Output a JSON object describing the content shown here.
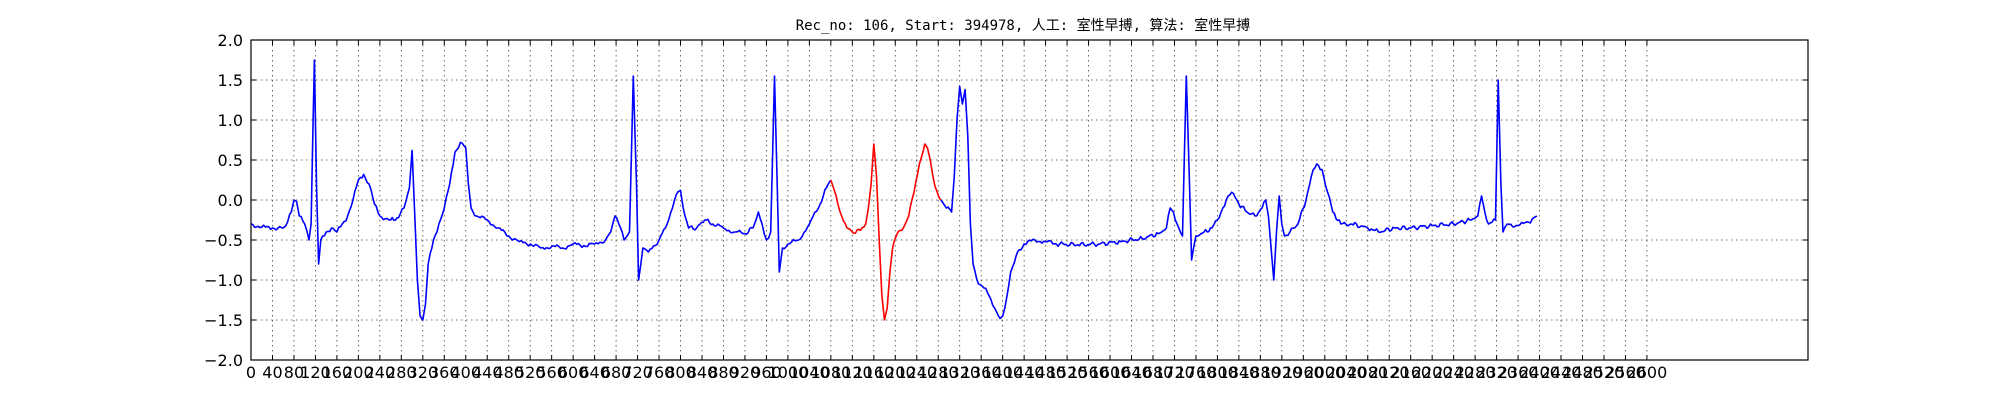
{
  "chart_data": {
    "type": "line",
    "title": "Rec_no: 106, Start: 394978, 人工: 室性早搏, 算法: 室性早搏",
    "xlabel": "",
    "ylabel": "",
    "xlim": [
      0,
      2900
    ],
    "ylim": [
      -2.0,
      2.0
    ],
    "grid": true,
    "yticks": [
      2.0,
      1.5,
      1.0,
      0.5,
      0.0,
      -0.5,
      -1.0,
      -1.5,
      -2.0
    ],
    "ytick_labels": [
      "2.0",
      "1.5",
      "1.0",
      "0.5",
      "0.0",
      "−0.5",
      "−1.0",
      "−1.5",
      "−2.0"
    ],
    "xticks": [
      0,
      40,
      80,
      120,
      160,
      200,
      240,
      280,
      320,
      360,
      400,
      440,
      480,
      520,
      560,
      600,
      640,
      680,
      720,
      760,
      800,
      840,
      880,
      920,
      960,
      1000,
      1040,
      1080,
      1120,
      1160,
      1200,
      1240,
      1280,
      1320,
      1360,
      1400,
      1440,
      1480,
      1520,
      1560,
      1600,
      1640,
      1680,
      1720,
      1760,
      1800,
      1840,
      1880,
      1920,
      1960,
      2000,
      2040,
      2080,
      2120,
      2160,
      2200,
      2240,
      2280,
      2320,
      2360,
      2400,
      2440,
      2480,
      2520,
      2560,
      2600
    ],
    "xtick_labels": [
      "0",
      "40",
      "80",
      "120",
      "160",
      "200",
      "240",
      "280",
      "320",
      "360",
      "400",
      "440",
      "480",
      "520",
      "560",
      "600",
      "640",
      "680",
      "720",
      "760",
      "800",
      "840",
      "880",
      "920",
      "960",
      "1000",
      "1040",
      "1080",
      "1120",
      "1160",
      "1200",
      "1240",
      "1280",
      "1320",
      "1360",
      "1400",
      "1440",
      "1480",
      "1520",
      "1560",
      "1600",
      "1640",
      "1680",
      "1720",
      "1760",
      "1800",
      "1840",
      "1880",
      "1920",
      "1960",
      "2000",
      "2040",
      "2080",
      "2120",
      "2160",
      "2200",
      "2240",
      "2280",
      "2320",
      "2360",
      "2400",
      "2440",
      "2480",
      "2520",
      "2560",
      "2600"
    ],
    "series": [
      {
        "color": "#0000ff",
        "points": [
          [
            0,
            -0.3
          ],
          [
            20,
            -0.34
          ],
          [
            40,
            -0.35
          ],
          [
            60,
            -0.35
          ],
          [
            65,
            -0.32
          ],
          [
            75,
            -0.15
          ],
          [
            80,
            0.0
          ],
          [
            85,
            -0.02
          ],
          [
            90,
            -0.2
          ],
          [
            100,
            -0.3
          ],
          [
            108,
            -0.5
          ],
          [
            112,
            -0.3
          ],
          [
            118,
            1.75
          ],
          [
            122,
            0.2
          ],
          [
            126,
            -0.8
          ],
          [
            130,
            -0.5
          ],
          [
            140,
            -0.4
          ],
          [
            150,
            -0.35
          ],
          [
            160,
            -0.4
          ],
          [
            170,
            -0.3
          ],
          [
            180,
            -0.2
          ],
          [
            190,
            0.0
          ],
          [
            200,
            0.25
          ],
          [
            210,
            0.32
          ],
          [
            220,
            0.2
          ],
          [
            230,
            -0.05
          ],
          [
            240,
            -0.2
          ],
          [
            260,
            -0.25
          ],
          [
            275,
            -0.22
          ],
          [
            285,
            -0.1
          ],
          [
            295,
            0.15
          ],
          [
            300,
            0.62
          ],
          [
            305,
            -0.2
          ],
          [
            310,
            -1.0
          ],
          [
            315,
            -1.45
          ],
          [
            320,
            -1.5
          ],
          [
            325,
            -1.3
          ],
          [
            330,
            -0.8
          ],
          [
            340,
            -0.5
          ],
          [
            350,
            -0.3
          ],
          [
            360,
            -0.1
          ],
          [
            370,
            0.2
          ],
          [
            380,
            0.6
          ],
          [
            390,
            0.72
          ],
          [
            400,
            0.65
          ],
          [
            405,
            0.2
          ],
          [
            410,
            -0.1
          ],
          [
            420,
            -0.2
          ],
          [
            440,
            -0.25
          ],
          [
            460,
            -0.35
          ],
          [
            480,
            -0.45
          ],
          [
            500,
            -0.52
          ],
          [
            520,
            -0.55
          ],
          [
            540,
            -0.6
          ],
          [
            560,
            -0.58
          ],
          [
            580,
            -0.6
          ],
          [
            600,
            -0.55
          ],
          [
            620,
            -0.57
          ],
          [
            640,
            -0.55
          ],
          [
            660,
            -0.5
          ],
          [
            670,
            -0.4
          ],
          [
            678,
            -0.2
          ],
          [
            685,
            -0.3
          ],
          [
            695,
            -0.5
          ],
          [
            705,
            -0.4
          ],
          [
            712,
            1.55
          ],
          [
            718,
            0.2
          ],
          [
            722,
            -1.0
          ],
          [
            730,
            -0.6
          ],
          [
            740,
            -0.65
          ],
          [
            760,
            -0.5
          ],
          [
            775,
            -0.3
          ],
          [
            785,
            -0.1
          ],
          [
            795,
            0.1
          ],
          [
            800,
            0.12
          ],
          [
            805,
            -0.1
          ],
          [
            815,
            -0.35
          ],
          [
            830,
            -0.35
          ],
          [
            845,
            -0.25
          ],
          [
            860,
            -0.3
          ],
          [
            880,
            -0.35
          ],
          [
            900,
            -0.4
          ],
          [
            920,
            -0.42
          ],
          [
            935,
            -0.35
          ],
          [
            945,
            -0.15
          ],
          [
            952,
            -0.3
          ],
          [
            960,
            -0.5
          ],
          [
            968,
            -0.4
          ],
          [
            975,
            1.55
          ],
          [
            980,
            0.2
          ],
          [
            984,
            -0.9
          ],
          [
            990,
            -0.6
          ],
          [
            1000,
            -0.55
          ],
          [
            1020,
            -0.5
          ],
          [
            1040,
            -0.3
          ],
          [
            1060,
            -0.05
          ],
          [
            1075,
            0.2
          ],
          [
            1080,
            0.25
          ]
        ]
      },
      {
        "color": "#ff0000",
        "points": [
          [
            1080,
            0.25
          ],
          [
            1090,
            0.05
          ],
          [
            1100,
            -0.2
          ],
          [
            1110,
            -0.35
          ],
          [
            1120,
            -0.4
          ],
          [
            1135,
            -0.38
          ],
          [
            1145,
            -0.3
          ],
          [
            1150,
            -0.1
          ],
          [
            1155,
            0.2
          ],
          [
            1160,
            0.7
          ],
          [
            1165,
            0.3
          ],
          [
            1170,
            -0.5
          ],
          [
            1175,
            -1.2
          ],
          [
            1180,
            -1.5
          ],
          [
            1185,
            -1.35
          ],
          [
            1190,
            -0.9
          ],
          [
            1195,
            -0.6
          ],
          [
            1205,
            -0.4
          ],
          [
            1215,
            -0.35
          ],
          [
            1225,
            -0.2
          ],
          [
            1235,
            0.1
          ],
          [
            1245,
            0.45
          ],
          [
            1255,
            0.7
          ],
          [
            1260,
            0.65
          ],
          [
            1265,
            0.5
          ],
          [
            1270,
            0.3
          ],
          [
            1278,
            0.1
          ],
          [
            1285,
            0.0
          ]
        ]
      },
      {
        "color": "#0000ff",
        "points": [
          [
            1285,
            0.0
          ],
          [
            1295,
            -0.1
          ],
          [
            1305,
            -0.15
          ],
          [
            1310,
            0.3
          ],
          [
            1315,
            1.0
          ],
          [
            1320,
            1.42
          ],
          [
            1325,
            1.2
          ],
          [
            1330,
            1.38
          ],
          [
            1335,
            0.8
          ],
          [
            1340,
            -0.3
          ],
          [
            1345,
            -0.8
          ],
          [
            1355,
            -1.05
          ],
          [
            1365,
            -1.1
          ],
          [
            1375,
            -1.2
          ],
          [
            1385,
            -1.35
          ],
          [
            1395,
            -1.48
          ],
          [
            1400,
            -1.45
          ],
          [
            1408,
            -1.2
          ],
          [
            1415,
            -0.9
          ],
          [
            1425,
            -0.7
          ],
          [
            1440,
            -0.55
          ],
          [
            1460,
            -0.5
          ],
          [
            1480,
            -0.52
          ],
          [
            1500,
            -0.55
          ],
          [
            1540,
            -0.56
          ],
          [
            1580,
            -0.55
          ],
          [
            1620,
            -0.52
          ],
          [
            1660,
            -0.48
          ],
          [
            1690,
            -0.42
          ],
          [
            1705,
            -0.35
          ],
          [
            1712,
            -0.1
          ],
          [
            1718,
            -0.15
          ],
          [
            1725,
            -0.3
          ],
          [
            1735,
            -0.45
          ],
          [
            1742,
            1.55
          ],
          [
            1748,
            0.2
          ],
          [
            1752,
            -0.75
          ],
          [
            1760,
            -0.45
          ],
          [
            1775,
            -0.4
          ],
          [
            1790,
            -0.35
          ],
          [
            1800,
            -0.25
          ],
          [
            1810,
            -0.1
          ],
          [
            1820,
            0.05
          ],
          [
            1830,
            0.08
          ],
          [
            1840,
            -0.05
          ],
          [
            1855,
            -0.15
          ],
          [
            1870,
            -0.2
          ],
          [
            1880,
            -0.12
          ],
          [
            1890,
            0.0
          ],
          [
            1895,
            -0.2
          ],
          [
            1900,
            -0.6
          ],
          [
            1905,
            -1.0
          ],
          [
            1910,
            -0.4
          ],
          [
            1915,
            0.05
          ],
          [
            1920,
            -0.3
          ],
          [
            1925,
            -0.45
          ],
          [
            1935,
            -0.4
          ],
          [
            1950,
            -0.3
          ],
          [
            1965,
            0.0
          ],
          [
            1975,
            0.3
          ],
          [
            1985,
            0.45
          ],
          [
            1995,
            0.38
          ],
          [
            2005,
            0.1
          ],
          [
            2015,
            -0.15
          ],
          [
            2030,
            -0.3
          ],
          [
            2050,
            -0.3
          ],
          [
            2080,
            -0.35
          ],
          [
            2100,
            -0.4
          ],
          [
            2130,
            -0.35
          ],
          [
            2160,
            -0.35
          ],
          [
            2200,
            -0.32
          ],
          [
            2240,
            -0.3
          ],
          [
            2270,
            -0.25
          ],
          [
            2285,
            -0.2
          ],
          [
            2292,
            0.05
          ],
          [
            2298,
            -0.15
          ],
          [
            2305,
            -0.3
          ],
          [
            2318,
            -0.25
          ],
          [
            2323,
            1.5
          ],
          [
            2328,
            0.2
          ],
          [
            2332,
            -0.4
          ],
          [
            2340,
            -0.3
          ],
          [
            2360,
            -0.32
          ],
          [
            2380,
            -0.28
          ],
          [
            2395,
            -0.2
          ]
        ]
      }
    ]
  }
}
